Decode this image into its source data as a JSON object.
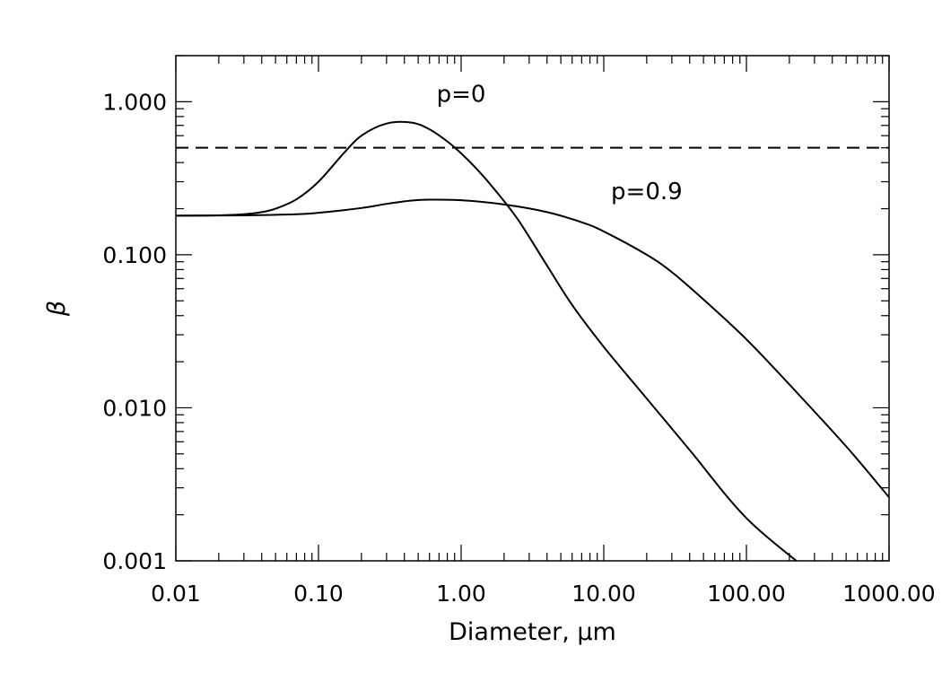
{
  "chart_data": {
    "type": "line",
    "title": "",
    "xlabel": "Diameter, μm",
    "ylabel": "β",
    "x_scale": "log",
    "y_scale": "log",
    "xlim": [
      0.01,
      1000
    ],
    "ylim": [
      0.001,
      2
    ],
    "x_tick_values": [
      0.01,
      0.1,
      1,
      10,
      100,
      1000
    ],
    "x_tick_labels": [
      "0.01",
      "0.10",
      "1.00",
      "10.00",
      "100.00",
      "1000.00"
    ],
    "y_tick_values": [
      0.001,
      0.01,
      0.1,
      1
    ],
    "y_tick_labels": [
      "0.001",
      "0.010",
      "0.100",
      "1.000"
    ],
    "grid": false,
    "legend": "none",
    "series": [
      {
        "name": "p=0",
        "style": "solid",
        "x": [
          0.01,
          0.02,
          0.03,
          0.04,
          0.05,
          0.07,
          0.1,
          0.15,
          0.2,
          0.3,
          0.45,
          0.6,
          0.8,
          1.0,
          1.3,
          1.7,
          2.5,
          4,
          6,
          10,
          20,
          40,
          100,
          270
        ],
        "y": [
          0.18,
          0.181,
          0.184,
          0.19,
          0.2,
          0.23,
          0.3,
          0.46,
          0.6,
          0.72,
          0.73,
          0.66,
          0.55,
          0.46,
          0.36,
          0.27,
          0.17,
          0.085,
          0.047,
          0.025,
          0.0115,
          0.0053,
          0.0019,
          0.00087
        ]
      },
      {
        "name": "p=0.9",
        "style": "solid",
        "x": [
          0.01,
          0.03,
          0.07,
          0.1,
          0.2,
          0.3,
          0.45,
          0.6,
          1.0,
          2.0,
          4,
          7,
          10,
          20,
          30,
          50,
          100,
          200,
          500,
          1000
        ],
        "y": [
          0.18,
          0.181,
          0.184,
          0.188,
          0.202,
          0.215,
          0.226,
          0.229,
          0.227,
          0.213,
          0.19,
          0.163,
          0.142,
          0.1,
          0.077,
          0.051,
          0.028,
          0.0142,
          0.0056,
          0.0026
        ]
      },
      {
        "name": "",
        "style": "dashed",
        "x": [
          0.01,
          1000
        ],
        "y": [
          0.5,
          0.5
        ]
      }
    ],
    "annotations": [
      {
        "text": "p=0",
        "x": 1.0,
        "y": 1.0
      },
      {
        "text": "p=0.9",
        "x": 20,
        "y": 0.23
      }
    ]
  }
}
